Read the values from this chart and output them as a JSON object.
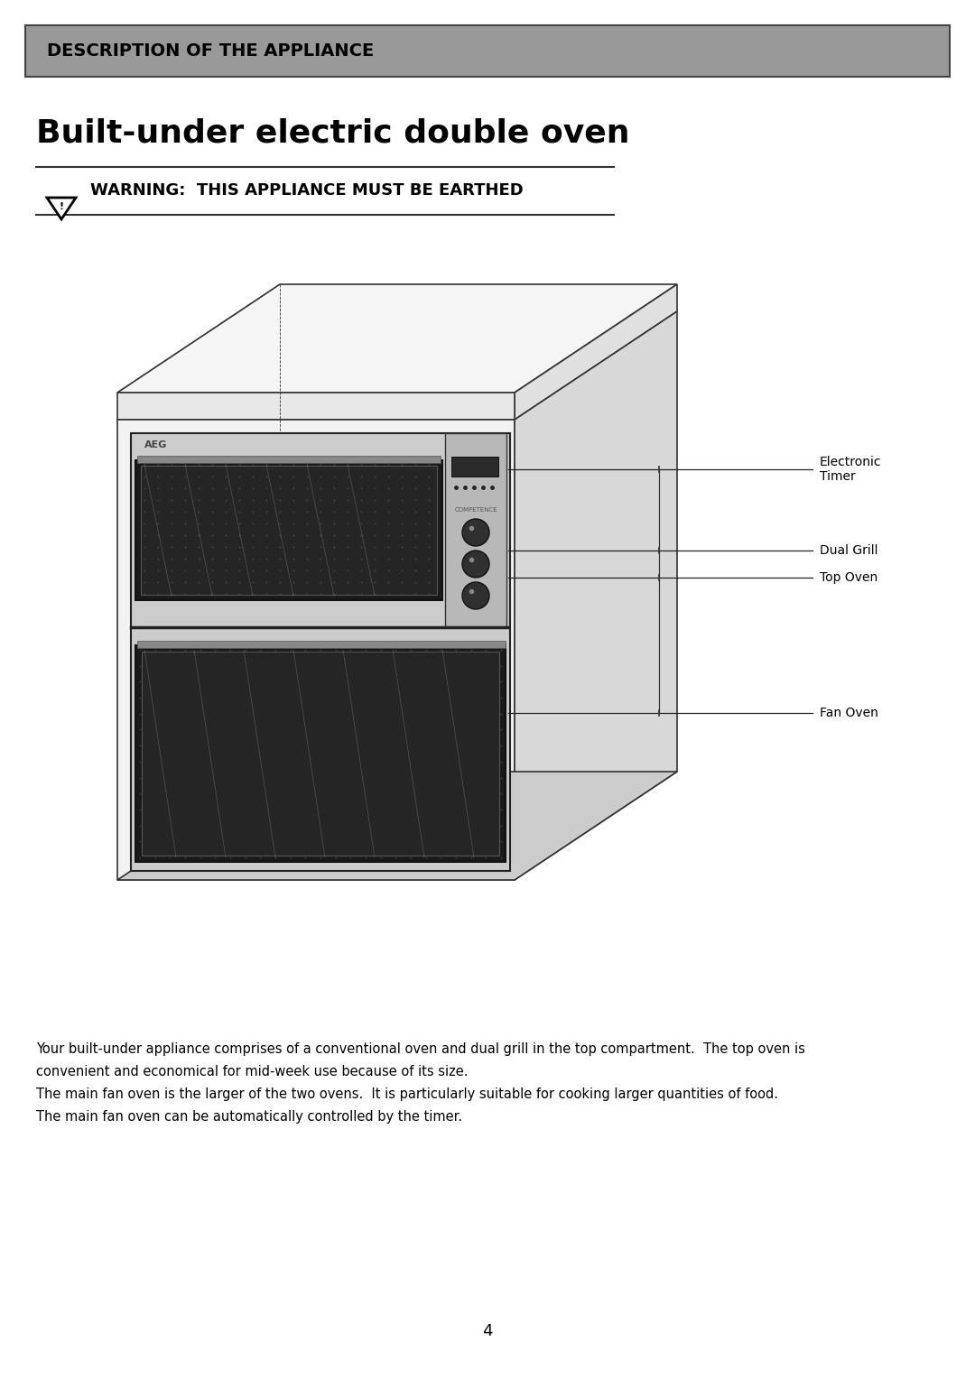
{
  "header_text": "DESCRIPTION OF THE APPLIANCE",
  "header_bg": "#999999",
  "header_text_color": "#000000",
  "title": "Built-under electric double oven",
  "warning_text": "WARNING:  THIS APPLIANCE MUST BE EARTHED",
  "body_text_line1": "Your built-under appliance comprises of a conventional oven and dual grill in the top compartment.  The top oven is",
  "body_text_line2": "convenient and economical for mid-week use because of its size.",
  "body_text_line3": "The main fan oven is the larger of the two ovens.  It is particularly suitable for cooking larger quantities of food.",
  "body_text_line4": "The main fan oven can be automatically controlled by the timer.",
  "page_number": "4",
  "bg_color": "#ffffff",
  "label_electronic_timer": "Electronic\nTimer",
  "label_dual_grill": "Dual Grill",
  "label_top_oven": "Top Oven",
  "label_fan_oven": "Fan Oven"
}
